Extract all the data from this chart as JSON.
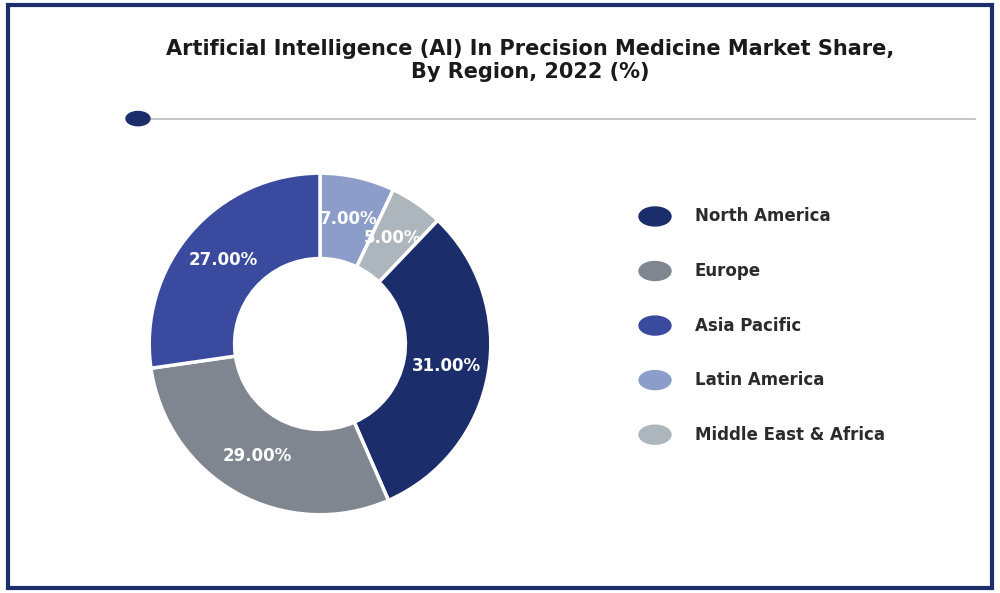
{
  "title": "Artificial Intelligence (AI) In Precision Medicine Market Share,\nBy Region, 2022 (%)",
  "labels": [
    "North America",
    "Europe",
    "Asia Pacific",
    "Latin America",
    "Middle East & Africa"
  ],
  "values": [
    31.0,
    29.0,
    27.0,
    7.0,
    5.0
  ],
  "colors": [
    "#1b2d6b",
    "#7f8690",
    "#3a4a9f",
    "#8b9dc8",
    "#adb5bd"
  ],
  "pct_labels": [
    "31.00%",
    "29.00%",
    "27.00%",
    "7.00%",
    "5.00%"
  ],
  "background_color": "#ffffff",
  "border_color": "#1b2d6b",
  "title_fontsize": 15,
  "legend_fontsize": 12,
  "pct_fontsize": 12
}
